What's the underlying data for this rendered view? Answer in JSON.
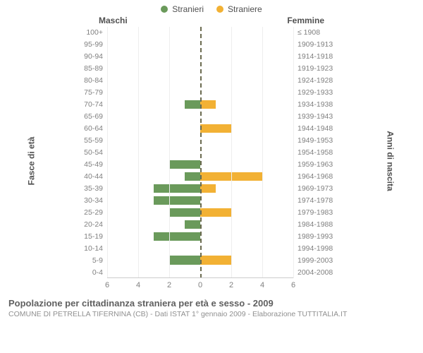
{
  "legend": {
    "male": {
      "label": "Stranieri",
      "color": "#6a9a5b"
    },
    "female": {
      "label": "Straniere",
      "color": "#f2b134"
    }
  },
  "headers": {
    "left": "Maschi",
    "right": "Femmine"
  },
  "axis_labels": {
    "left": "Fasce di età",
    "right": "Anni di nascita"
  },
  "chart": {
    "type": "population-pyramid",
    "x_max": 6,
    "x_ticks": [
      6,
      4,
      2,
      0,
      2,
      4,
      6
    ],
    "grid_color": "#eeeeee",
    "center_line_color": "#6b6b50",
    "bar_color_male": "#6a9a5b",
    "bar_color_female": "#f2b134",
    "background_color": "#ffffff",
    "rows": [
      {
        "age": "100+",
        "birth": "≤ 1908",
        "m": 0,
        "f": 0
      },
      {
        "age": "95-99",
        "birth": "1909-1913",
        "m": 0,
        "f": 0
      },
      {
        "age": "90-94",
        "birth": "1914-1918",
        "m": 0,
        "f": 0
      },
      {
        "age": "85-89",
        "birth": "1919-1923",
        "m": 0,
        "f": 0
      },
      {
        "age": "80-84",
        "birth": "1924-1928",
        "m": 0,
        "f": 0
      },
      {
        "age": "75-79",
        "birth": "1929-1933",
        "m": 0,
        "f": 0
      },
      {
        "age": "70-74",
        "birth": "1934-1938",
        "m": 1,
        "f": 1
      },
      {
        "age": "65-69",
        "birth": "1939-1943",
        "m": 0,
        "f": 0
      },
      {
        "age": "60-64",
        "birth": "1944-1948",
        "m": 0,
        "f": 2
      },
      {
        "age": "55-59",
        "birth": "1949-1953",
        "m": 0,
        "f": 0
      },
      {
        "age": "50-54",
        "birth": "1954-1958",
        "m": 0,
        "f": 0
      },
      {
        "age": "45-49",
        "birth": "1959-1963",
        "m": 2,
        "f": 0
      },
      {
        "age": "40-44",
        "birth": "1964-1968",
        "m": 1,
        "f": 4
      },
      {
        "age": "35-39",
        "birth": "1969-1973",
        "m": 3,
        "f": 1
      },
      {
        "age": "30-34",
        "birth": "1974-1978",
        "m": 3,
        "f": 0
      },
      {
        "age": "25-29",
        "birth": "1979-1983",
        "m": 2,
        "f": 2
      },
      {
        "age": "20-24",
        "birth": "1984-1988",
        "m": 1,
        "f": 0
      },
      {
        "age": "15-19",
        "birth": "1989-1993",
        "m": 3,
        "f": 0
      },
      {
        "age": "10-14",
        "birth": "1994-1998",
        "m": 0,
        "f": 0
      },
      {
        "age": "5-9",
        "birth": "1999-2003",
        "m": 2,
        "f": 2
      },
      {
        "age": "0-4",
        "birth": "2004-2008",
        "m": 0,
        "f": 0
      }
    ]
  },
  "footer": {
    "title": "Popolazione per cittadinanza straniera per età e sesso - 2009",
    "subtitle": "COMUNE DI PETRELLA TIFERNINA (CB) - Dati ISTAT 1° gennaio 2009 - Elaborazione TUTTITALIA.IT"
  }
}
